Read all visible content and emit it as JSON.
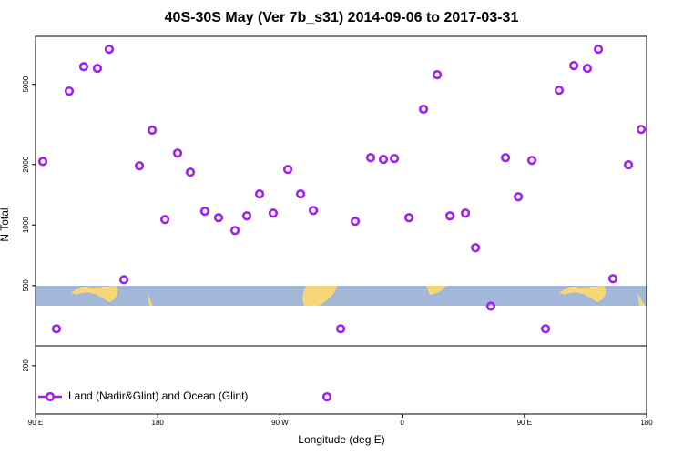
{
  "chart_data": {
    "type": "scatter",
    "title": "40S-30S May (Ver 7b_s31)   2014-09-06 to 2017-03-31",
    "xlabel": "Longitude (deg E)",
    "ylabel": "N Total",
    "xlim": [
      90,
      540
    ],
    "ylim": [
      115,
      8650
    ],
    "ylog": true,
    "xticks": [
      {
        "value": 90,
        "label": "90 E"
      },
      {
        "value": 180,
        "label": "180"
      },
      {
        "value": 270,
        "label": "90 W"
      },
      {
        "value": 360,
        "label": "0"
      },
      {
        "value": 450,
        "label": "90 E"
      },
      {
        "value": 540,
        "label": "180"
      }
    ],
    "yticks": [
      200,
      500,
      1000,
      2000,
      5000
    ],
    "legend": "lower left",
    "series": [
      {
        "name": "Land (Nadir&Glint) and Ocean (Glint)",
        "color": "#a020f0",
        "x": [
          95.4,
          105.4,
          114.8,
          125.5,
          135.6,
          144.3,
          155.1,
          166.5,
          175.9,
          185.3,
          194.6,
          204.0,
          214.7,
          224.8,
          236.9,
          245.6,
          255.0,
          265.0,
          275.8,
          285.2,
          294.6,
          304.6,
          314.7,
          325.4,
          336.8,
          346.2,
          354.3,
          365.0,
          375.7,
          385.8,
          395.2,
          406.6,
          414.0,
          425.3,
          436.1,
          445.5,
          455.5,
          465.6,
          475.6,
          486.4,
          496.4,
          504.5,
          515.2,
          526.6,
          536.0
        ],
        "values": [
          2070,
          305,
          4625,
          6120,
          6000,
          7470,
          535,
          1968,
          2960,
          1065,
          2276,
          1830,
          1170,
          1087,
          939,
          1110,
          1426,
          1145,
          1888,
          1426,
          1181,
          140,
          305,
          1043,
          2161,
          2118,
          2140,
          1087,
          3760,
          5580,
          1110,
          1145,
          771,
          395,
          2161,
          1381,
          2096,
          305,
          4675,
          6190,
          6000,
          7470,
          541,
          1990,
          2985
        ]
      }
    ]
  }
}
